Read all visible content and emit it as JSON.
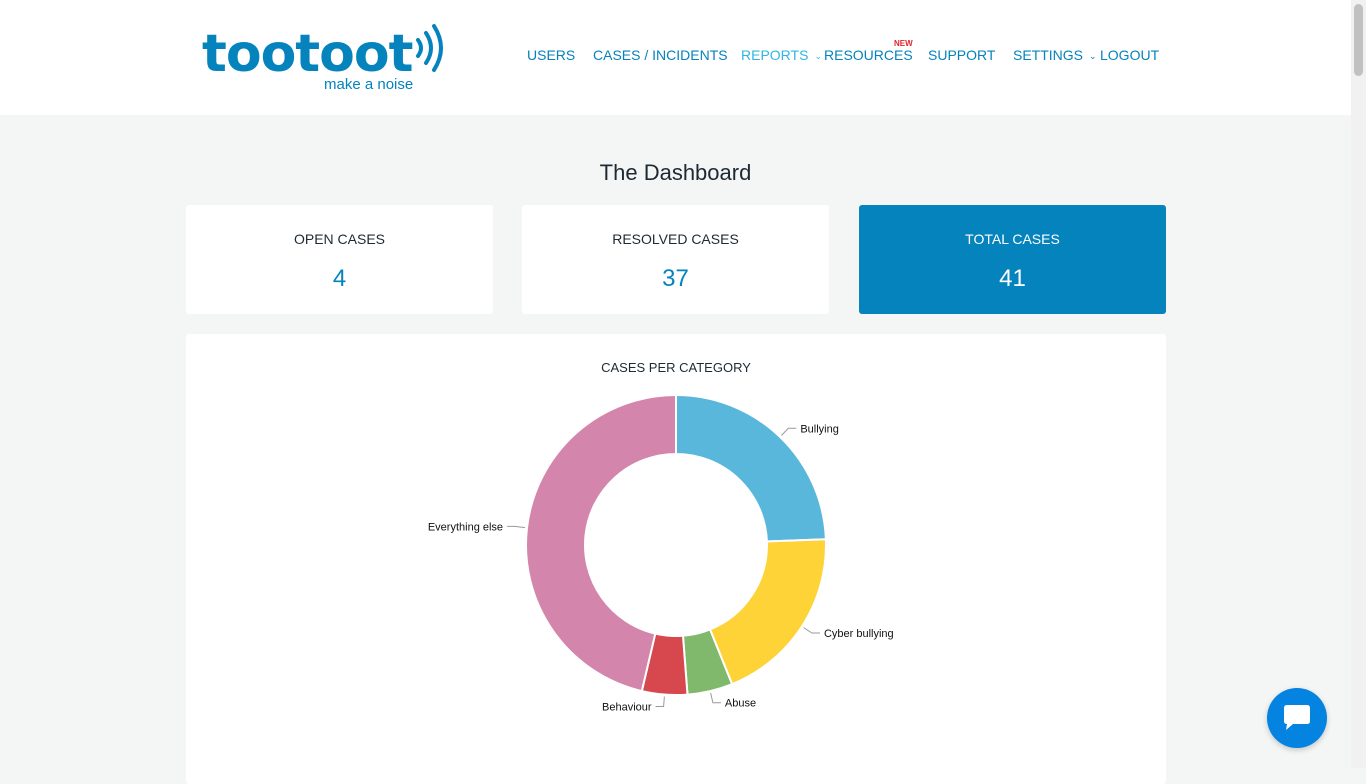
{
  "brand": {
    "name": "tootoot",
    "tagline": "make a noise"
  },
  "nav": {
    "items": [
      {
        "label": "USERS",
        "dropdown": false
      },
      {
        "label": "CASES / INCIDENTS",
        "dropdown": false
      },
      {
        "label": "REPORTS",
        "dropdown": true,
        "active": true
      },
      {
        "label": "RESOURCES",
        "dropdown": false,
        "badge": "NEW"
      },
      {
        "label": "SUPPORT",
        "dropdown": false
      },
      {
        "label": "SETTINGS",
        "dropdown": true
      },
      {
        "label": "LOGOUT",
        "dropdown": false
      }
    ]
  },
  "page": {
    "title": "The Dashboard"
  },
  "stats": [
    {
      "label": "OPEN CASES",
      "value": "4"
    },
    {
      "label": "RESOLVED CASES",
      "value": "37"
    },
    {
      "label": "TOTAL CASES",
      "value": "41"
    }
  ],
  "chart_data": {
    "type": "pie",
    "title": "CASES PER CATEGORY",
    "categories": [
      "Bullying",
      "Cyber bullying",
      "Abuse",
      "Behaviour",
      "Everything else"
    ],
    "values": [
      10,
      8,
      2,
      2,
      19
    ],
    "colors": [
      "#5ab7dc",
      "#fed337",
      "#80b96b",
      "#d7474e",
      "#d385ab"
    ]
  },
  "chat": {
    "icon": "chat-bubble-icon"
  },
  "colors": {
    "brand": "#0583bd",
    "active_nav": "#2fb6e3",
    "background": "#f4f6f6",
    "badge": "#e0242a"
  }
}
